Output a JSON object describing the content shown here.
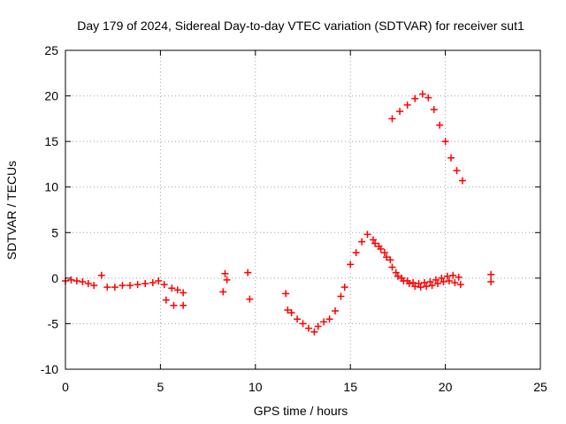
{
  "chart_data": {
    "type": "scatter",
    "title": "Day 179 of 2024, Sidereal Day-to-day VTEC variation (SDTVAR) for receiver sut1",
    "xlabel": "GPS time / hours",
    "ylabel": "SDTVAR / TECUs",
    "xlim": [
      0,
      25
    ],
    "ylim": [
      -10,
      25
    ],
    "xticks": [
      0,
      5,
      10,
      15,
      20,
      25
    ],
    "yticks": [
      -10,
      -5,
      0,
      5,
      10,
      15,
      20,
      25
    ],
    "grid": true,
    "marker": "+",
    "color": "#ff0000",
    "series": [
      {
        "name": "SDTVAR",
        "x": [
          0.0,
          0.3,
          0.6,
          0.9,
          1.2,
          1.5,
          1.9,
          2.2,
          2.6,
          3.0,
          3.4,
          3.8,
          4.2,
          4.6,
          4.9,
          5.2,
          5.6,
          5.9,
          6.2,
          5.3,
          5.7,
          6.2,
          8.3,
          8.4,
          8.5,
          9.6,
          9.7,
          11.6,
          11.7,
          11.9,
          12.2,
          12.5,
          12.8,
          13.1,
          13.3,
          13.6,
          13.9,
          14.2,
          14.5,
          14.7,
          15.0,
          15.3,
          15.6,
          15.9,
          16.2,
          16.5,
          16.8,
          17.1,
          17.4,
          17.7,
          18.0,
          18.3,
          18.6,
          18.9,
          19.2,
          19.5,
          19.8,
          20.1,
          20.4,
          20.7,
          16.3,
          16.6,
          16.9,
          17.2,
          17.5,
          17.8,
          18.1,
          18.4,
          18.7,
          19.0,
          19.3,
          19.6,
          19.9,
          20.2,
          20.5,
          20.8,
          17.2,
          17.6,
          18.0,
          18.4,
          18.8,
          19.1,
          19.4,
          19.7,
          20.0,
          20.3,
          20.6,
          20.9,
          22.4,
          22.4
        ],
        "y": [
          -0.3,
          -0.2,
          -0.3,
          -0.4,
          -0.6,
          -0.8,
          0.3,
          -1.0,
          -1.0,
          -0.8,
          -0.8,
          -0.7,
          -0.6,
          -0.5,
          -0.3,
          -0.7,
          -1.1,
          -1.3,
          -1.6,
          -2.4,
          -3.0,
          -3.0,
          -1.5,
          0.5,
          -0.2,
          0.6,
          -2.3,
          -1.7,
          -3.5,
          -3.8,
          -4.5,
          -5.0,
          -5.5,
          -5.9,
          -5.3,
          -4.8,
          -4.5,
          -3.6,
          -2.0,
          -1.0,
          1.5,
          2.8,
          4.0,
          4.8,
          4.2,
          3.5,
          2.8,
          2.0,
          0.6,
          0.0,
          -0.3,
          -0.5,
          -0.6,
          -0.5,
          -0.4,
          -0.2,
          0.0,
          0.2,
          0.3,
          0.1,
          3.8,
          3.2,
          2.3,
          1.2,
          0.2,
          -0.3,
          -0.6,
          -0.9,
          -1.0,
          -0.9,
          -0.8,
          -0.6,
          -0.4,
          -0.3,
          -0.5,
          -0.7,
          17.5,
          18.3,
          19.0,
          19.7,
          20.2,
          19.8,
          18.5,
          16.8,
          15.0,
          13.2,
          11.8,
          10.7,
          0.4,
          -0.4
        ]
      }
    ]
  }
}
